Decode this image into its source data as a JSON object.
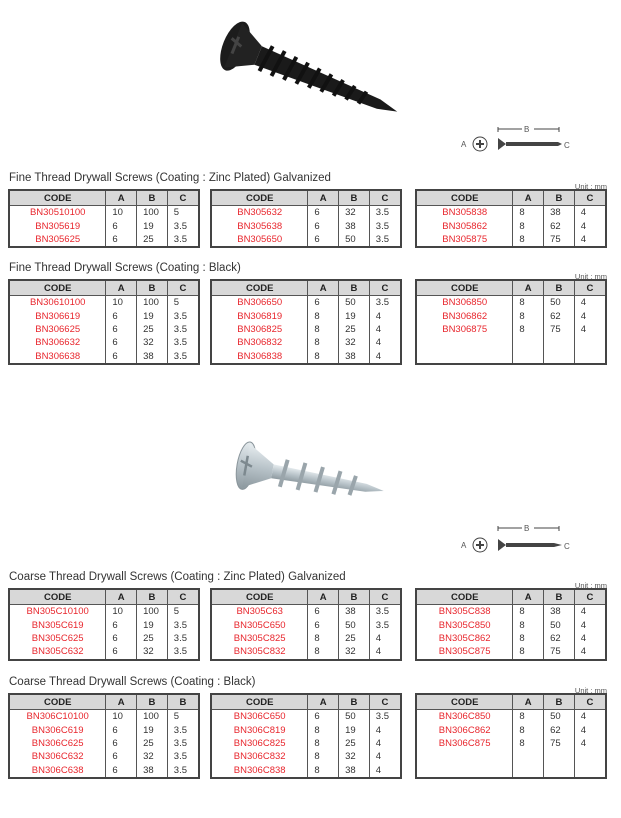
{
  "colors": {
    "code_text": "#e8262d",
    "header_bg": "#d8d8d8",
    "border": "#444444"
  },
  "images": [
    {
      "name": "black-drywall-screw-image"
    },
    {
      "name": "zinc-drywall-screw-image"
    }
  ],
  "diagram": {
    "label_a": "A",
    "label_b": "B",
    "label_c": "C"
  },
  "sections": [
    {
      "title": "Fine Thread Drywall Screws (Coating : Zinc Plated) Galvanized",
      "unit": "Unit : mm",
      "row_count": 3,
      "tables": [
        {
          "headers": [
            "CODE",
            "A",
            "B",
            "C"
          ],
          "rows": [
            [
              "BN30510100",
              "10",
              "100",
              "5"
            ],
            [
              "BN305619",
              "6",
              "19",
              "3.5"
            ],
            [
              "BN305625",
              "6",
              "25",
              "3.5"
            ]
          ]
        },
        {
          "headers": [
            "CODE",
            "A",
            "B",
            "C"
          ],
          "rows": [
            [
              "BN305632",
              "6",
              "32",
              "3.5"
            ],
            [
              "BN305638",
              "6",
              "38",
              "3.5"
            ],
            [
              "BN305650",
              "6",
              "50",
              "3.5"
            ]
          ]
        },
        {
          "headers": [
            "CODE",
            "A",
            "B",
            "C"
          ],
          "rows": [
            [
              "BN305838",
              "8",
              "38",
              "4"
            ],
            [
              "BN305862",
              "8",
              "62",
              "4"
            ],
            [
              "BN305875",
              "8",
              "75",
              "4"
            ]
          ]
        }
      ]
    },
    {
      "title": "Fine Thread Drywall Screws (Coating : Black)",
      "unit": "Unit : mm",
      "row_count": 5,
      "tables": [
        {
          "headers": [
            "CODE",
            "A",
            "B",
            "C"
          ],
          "rows": [
            [
              "BN30610100",
              "10",
              "100",
              "5"
            ],
            [
              "BN306619",
              "6",
              "19",
              "3.5"
            ],
            [
              "BN306625",
              "6",
              "25",
              "3.5"
            ],
            [
              "BN306632",
              "6",
              "32",
              "3.5"
            ],
            [
              "BN306638",
              "6",
              "38",
              "3.5"
            ]
          ]
        },
        {
          "headers": [
            "CODE",
            "A",
            "B",
            "C"
          ],
          "rows": [
            [
              "BN306650",
              "6",
              "50",
              "3.5"
            ],
            [
              "BN306819",
              "8",
              "19",
              "4"
            ],
            [
              "BN306825",
              "8",
              "25",
              "4"
            ],
            [
              "BN306832",
              "8",
              "32",
              "4"
            ],
            [
              "BN306838",
              "8",
              "38",
              "4"
            ]
          ]
        },
        {
          "headers": [
            "CODE",
            "A",
            "B",
            "C"
          ],
          "rows": [
            [
              "BN306850",
              "8",
              "50",
              "4"
            ],
            [
              "BN306862",
              "8",
              "62",
              "4"
            ],
            [
              "BN306875",
              "8",
              "75",
              "4"
            ]
          ]
        }
      ]
    },
    {
      "title": "Coarse Thread Drywall Screws (Coating : Zinc Plated) Galvanized",
      "unit": "Unit : mm",
      "row_count": 4,
      "tables": [
        {
          "headers": [
            "CODE",
            "A",
            "B",
            "C"
          ],
          "rows": [
            [
              "BN305C10100",
              "10",
              "100",
              "5"
            ],
            [
              "BN305C619",
              "6",
              "19",
              "3.5"
            ],
            [
              "BN305C625",
              "6",
              "25",
              "3.5"
            ],
            [
              "BN305C632",
              "6",
              "32",
              "3.5"
            ]
          ]
        },
        {
          "headers": [
            "CODE",
            "A",
            "B",
            "C"
          ],
          "rows": [
            [
              "BN305C63",
              "6",
              "38",
              "3.5"
            ],
            [
              "BN305C650",
              "6",
              "50",
              "3.5"
            ],
            [
              "BN305C825",
              "8",
              "25",
              "4"
            ],
            [
              "BN305C832",
              "8",
              "32",
              "4"
            ]
          ]
        },
        {
          "headers": [
            "CODE",
            "A",
            "B",
            "C"
          ],
          "rows": [
            [
              "BN305C838",
              "8",
              "38",
              "4"
            ],
            [
              "BN305C850",
              "8",
              "50",
              "4"
            ],
            [
              "BN305C862",
              "8",
              "62",
              "4"
            ],
            [
              "BN305C875",
              "8",
              "75",
              "4"
            ]
          ]
        }
      ]
    },
    {
      "title": "Coarse Thread Drywall Screws (Coating : Black)",
      "unit": "Unit : mm",
      "row_count": 5,
      "tables": [
        {
          "headers": [
            "CODE",
            "A",
            "B",
            "B"
          ],
          "rows": [
            [
              "BN306C10100",
              "10",
              "100",
              "5"
            ],
            [
              "BN306C619",
              "6",
              "19",
              "3.5"
            ],
            [
              "BN306C625",
              "6",
              "25",
              "3.5"
            ],
            [
              "BN306C632",
              "6",
              "32",
              "3.5"
            ],
            [
              "BN306C638",
              "6",
              "38",
              "3.5"
            ]
          ]
        },
        {
          "headers": [
            "CODE",
            "A",
            "B",
            "C"
          ],
          "rows": [
            [
              "BN306C650",
              "6",
              "50",
              "3.5"
            ],
            [
              "BN306C819",
              "8",
              "19",
              "4"
            ],
            [
              "BN306C825",
              "8",
              "25",
              "4"
            ],
            [
              "BN306C832",
              "8",
              "32",
              "4"
            ],
            [
              "BN306C838",
              "8",
              "38",
              "4"
            ]
          ]
        },
        {
          "headers": [
            "CODE",
            "A",
            "B",
            "C"
          ],
          "rows": [
            [
              "BN306C850",
              "8",
              "50",
              "4"
            ],
            [
              "BN306C862",
              "8",
              "62",
              "4"
            ],
            [
              "BN306C875",
              "8",
              "75",
              "4"
            ]
          ]
        }
      ]
    }
  ]
}
